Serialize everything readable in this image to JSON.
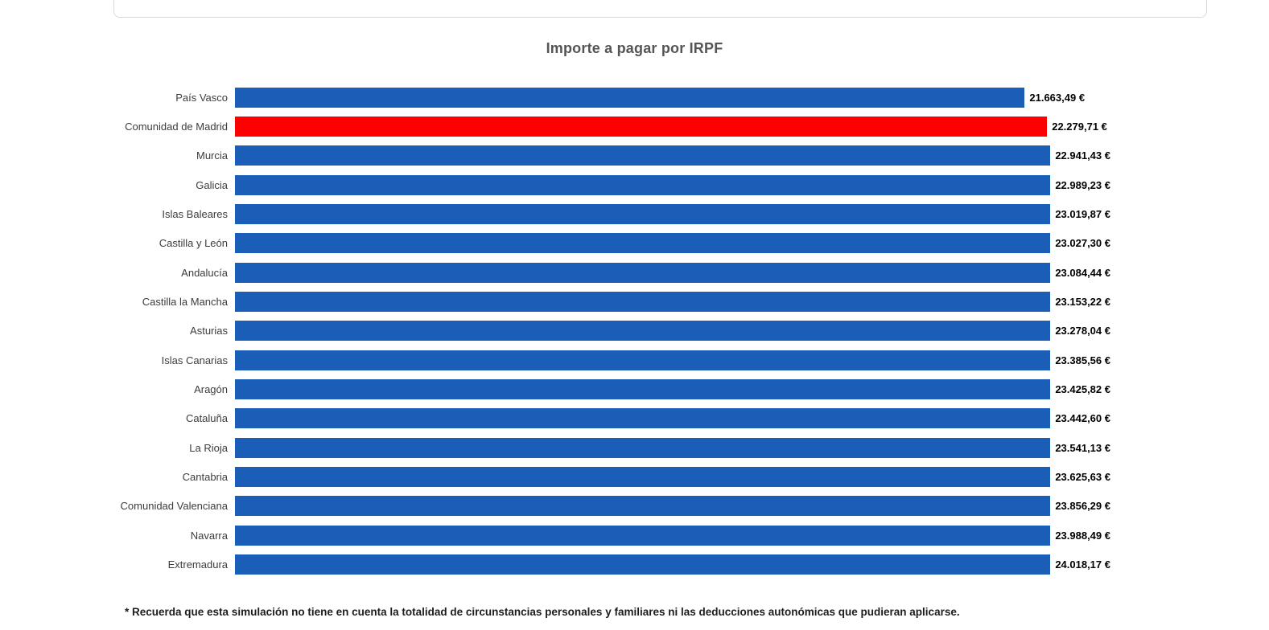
{
  "title": "Importe a pagar por IRPF",
  "footnote": "* Recuerda que esta simulación no tiene en cuenta la totalidad de circunstancias personales y familiares ni las deducciones autonómicas que pudieran aplicarse.",
  "colors": {
    "bar": "#1a5eb8",
    "highlight": "#fe0000",
    "title": "#555555",
    "category_label": "#3c3c3c",
    "value_label": "#000000"
  },
  "chart_data": {
    "type": "bar",
    "orientation": "horizontal",
    "title": "Importe a pagar por IRPF",
    "xlabel": "",
    "ylabel": "",
    "xlim": [
      0,
      24018.17
    ],
    "grid": false,
    "legend": false,
    "highlight_category": "Comunidad de Madrid",
    "categories": [
      "País Vasco",
      "Comunidad de Madrid",
      "Murcia",
      "Galicia",
      "Islas Baleares",
      "Castilla y León",
      "Andalucía",
      "Castilla la Mancha",
      "Asturias",
      "Islas Canarias",
      "Aragón",
      "Cataluña",
      "La Rioja",
      "Cantabria",
      "Comunidad Valenciana",
      "Navarra",
      "Extremadura"
    ],
    "values": [
      21663.49,
      22279.71,
      22941.43,
      22989.23,
      23019.87,
      23027.3,
      23084.44,
      23153.22,
      23278.04,
      23385.56,
      23425.82,
      23442.6,
      23541.13,
      23625.63,
      23856.29,
      23988.49,
      24018.17
    ],
    "value_labels": [
      "21.663,49 €",
      "22.279,71 €",
      "22.941,43 €",
      "22.989,23 €",
      "23.019,87 €",
      "23.027,30 €",
      "23.084,44 €",
      "23.153,22 €",
      "23.278,04 €",
      "23.385,56 €",
      "23.425,82 €",
      "23.442,60 €",
      "23.541,13 €",
      "23.625,63 €",
      "23.856,29 €",
      "23.988,49 €",
      "24.018,17 €"
    ]
  }
}
